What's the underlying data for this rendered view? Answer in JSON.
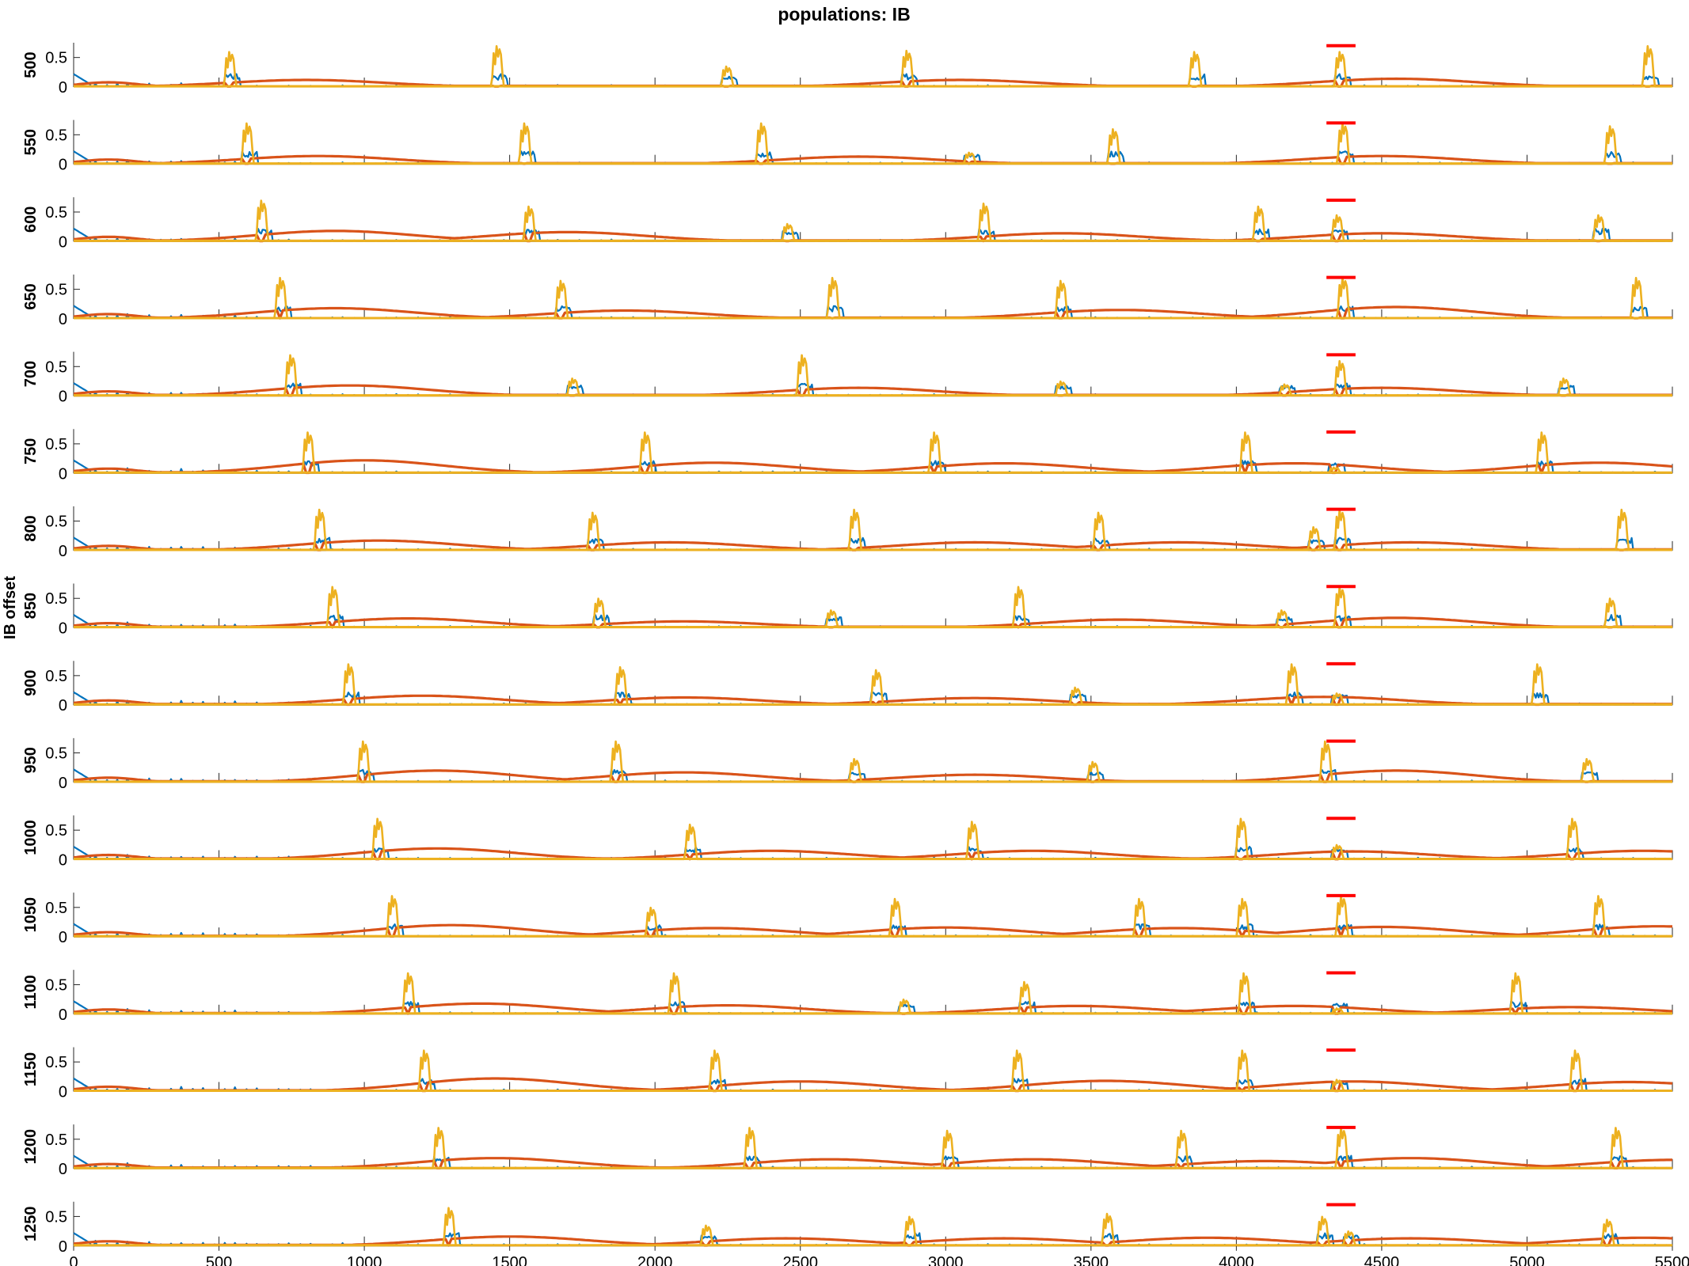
{
  "chart_data": {
    "type": "line",
    "title": "populations: IB",
    "ylabel": "IB offset",
    "xlabel": "",
    "xlim": [
      0,
      5500
    ],
    "xticks": [
      0,
      500,
      1000,
      1500,
      2000,
      2500,
      3000,
      3500,
      4000,
      4500,
      5000,
      5500
    ],
    "ylim": [
      0,
      0.75
    ],
    "yticks": [
      0,
      0.5
    ],
    "ytick_labels": [
      "0",
      "0.5"
    ],
    "grid": false,
    "series_colors": {
      "blue": "#0072bd",
      "orange": "#d95319",
      "yellow": "#edb120",
      "marker": "#ff0000"
    },
    "stimulus_bar": {
      "x_start": 4310,
      "x_end": 4410,
      "y": 0.7
    },
    "rows": [
      {
        "label": "500",
        "bursts": [
          [
            530,
            0.6
          ],
          [
            1450,
            0.7
          ],
          [
            2240,
            0.35
          ],
          [
            2860,
            0.62
          ],
          [
            3850,
            0.6
          ],
          [
            4350,
            0.6
          ],
          [
            5410,
            0.7
          ]
        ],
        "slow_peaks": [
          [
            800,
            0.12
          ],
          [
            3050,
            0.12
          ],
          [
            4550,
            0.14
          ]
        ]
      },
      {
        "label": "550",
        "bursts": [
          [
            590,
            0.7
          ],
          [
            1545,
            0.7
          ],
          [
            2360,
            0.7
          ],
          [
            3075,
            0.2
          ],
          [
            3570,
            0.6
          ],
          [
            4360,
            0.7
          ],
          [
            5280,
            0.65
          ]
        ],
        "slow_peaks": [
          [
            840,
            0.14
          ],
          [
            2700,
            0.13
          ],
          [
            4500,
            0.14
          ]
        ]
      },
      {
        "label": "600",
        "bursts": [
          [
            640,
            0.7
          ],
          [
            1560,
            0.6
          ],
          [
            2450,
            0.3
          ],
          [
            3125,
            0.65
          ],
          [
            4070,
            0.6
          ],
          [
            4340,
            0.45
          ],
          [
            5240,
            0.45
          ]
        ],
        "slow_peaks": [
          [
            900,
            0.18
          ],
          [
            1700,
            0.16
          ],
          [
            3400,
            0.14
          ],
          [
            4500,
            0.14
          ]
        ]
      },
      {
        "label": "650",
        "bursts": [
          [
            705,
            0.7
          ],
          [
            1670,
            0.65
          ],
          [
            2605,
            0.7
          ],
          [
            3390,
            0.65
          ],
          [
            4360,
            0.7
          ],
          [
            5370,
            0.7
          ]
        ],
        "slow_peaks": [
          [
            900,
            0.18
          ],
          [
            1900,
            0.14
          ],
          [
            3600,
            0.15
          ],
          [
            4550,
            0.2
          ]
        ]
      },
      {
        "label": "700",
        "bursts": [
          [
            740,
            0.7
          ],
          [
            1710,
            0.3
          ],
          [
            2500,
            0.7
          ],
          [
            3390,
            0.25
          ],
          [
            4160,
            0.2
          ],
          [
            4350,
            0.6
          ],
          [
            5120,
            0.3
          ]
        ],
        "slow_peaks": [
          [
            950,
            0.18
          ],
          [
            2700,
            0.14
          ],
          [
            4500,
            0.14
          ]
        ]
      },
      {
        "label": "750",
        "bursts": [
          [
            800,
            0.7
          ],
          [
            1960,
            0.7
          ],
          [
            2955,
            0.7
          ],
          [
            4025,
            0.7
          ],
          [
            4330,
            0.1
          ],
          [
            5045,
            0.7
          ]
        ],
        "slow_peaks": [
          [
            1000,
            0.22
          ],
          [
            2200,
            0.18
          ],
          [
            3200,
            0.17
          ],
          [
            4200,
            0.17
          ],
          [
            5250,
            0.18
          ]
        ]
      },
      {
        "label": "800",
        "bursts": [
          [
            840,
            0.7
          ],
          [
            1780,
            0.65
          ],
          [
            2680,
            0.7
          ],
          [
            3520,
            0.65
          ],
          [
            4260,
            0.4
          ],
          [
            4350,
            0.7
          ],
          [
            5320,
            0.7
          ]
        ],
        "slow_peaks": [
          [
            1050,
            0.17
          ],
          [
            2050,
            0.14
          ],
          [
            3100,
            0.14
          ],
          [
            3800,
            0.14
          ],
          [
            4600,
            0.14
          ]
        ]
      },
      {
        "label": "850",
        "bursts": [
          [
            885,
            0.7
          ],
          [
            1800,
            0.5
          ],
          [
            2600,
            0.3
          ],
          [
            3245,
            0.7
          ],
          [
            4150,
            0.3
          ],
          [
            4350,
            0.7
          ],
          [
            5280,
            0.5
          ]
        ],
        "slow_peaks": [
          [
            1150,
            0.16
          ],
          [
            2100,
            0.11
          ],
          [
            3600,
            0.14
          ],
          [
            4550,
            0.17
          ]
        ]
      },
      {
        "label": "900",
        "bursts": [
          [
            940,
            0.7
          ],
          [
            1875,
            0.65
          ],
          [
            2755,
            0.6
          ],
          [
            3440,
            0.3
          ],
          [
            4185,
            0.7
          ],
          [
            4340,
            0.2
          ],
          [
            5030,
            0.7
          ]
        ],
        "slow_peaks": [
          [
            1200,
            0.16
          ],
          [
            2100,
            0.13
          ],
          [
            3100,
            0.12
          ],
          [
            4300,
            0.14
          ]
        ]
      },
      {
        "label": "950",
        "bursts": [
          [
            990,
            0.7
          ],
          [
            1860,
            0.7
          ],
          [
            2680,
            0.4
          ],
          [
            3500,
            0.35
          ],
          [
            4300,
            0.7
          ],
          [
            5200,
            0.4
          ]
        ],
        "slow_peaks": [
          [
            1250,
            0.2
          ],
          [
            2100,
            0.17
          ],
          [
            3100,
            0.13
          ],
          [
            4550,
            0.2
          ]
        ]
      },
      {
        "label": "1000",
        "bursts": [
          [
            1040,
            0.7
          ],
          [
            2115,
            0.6
          ],
          [
            3085,
            0.65
          ],
          [
            4010,
            0.7
          ],
          [
            4340,
            0.25
          ],
          [
            5150,
            0.7
          ]
        ],
        "slow_peaks": [
          [
            1250,
            0.19
          ],
          [
            2400,
            0.15
          ],
          [
            3300,
            0.15
          ],
          [
            4400,
            0.14
          ],
          [
            5400,
            0.15
          ]
        ]
      },
      {
        "label": "1050",
        "bursts": [
          [
            1090,
            0.7
          ],
          [
            1980,
            0.5
          ],
          [
            2820,
            0.65
          ],
          [
            3660,
            0.65
          ],
          [
            4015,
            0.65
          ],
          [
            4355,
            0.7
          ],
          [
            5240,
            0.7
          ]
        ],
        "slow_peaks": [
          [
            1300,
            0.2
          ],
          [
            2200,
            0.15
          ],
          [
            3000,
            0.16
          ],
          [
            3800,
            0.15
          ],
          [
            4500,
            0.17
          ],
          [
            5450,
            0.18
          ]
        ]
      },
      {
        "label": "1100",
        "bursts": [
          [
            1145,
            0.7
          ],
          [
            2060,
            0.7
          ],
          [
            2850,
            0.25
          ],
          [
            3265,
            0.55
          ],
          [
            4020,
            0.7
          ],
          [
            4340,
            0.1
          ],
          [
            4955,
            0.7
          ]
        ],
        "slow_peaks": [
          [
            1400,
            0.18
          ],
          [
            2250,
            0.15
          ],
          [
            3450,
            0.14
          ],
          [
            4200,
            0.14
          ],
          [
            5150,
            0.12
          ]
        ]
      },
      {
        "label": "1150",
        "bursts": [
          [
            1200,
            0.7
          ],
          [
            2200,
            0.7
          ],
          [
            3240,
            0.7
          ],
          [
            4015,
            0.7
          ],
          [
            4340,
            0.2
          ],
          [
            5160,
            0.7
          ]
        ],
        "slow_peaks": [
          [
            1450,
            0.22
          ],
          [
            2500,
            0.17
          ],
          [
            3550,
            0.18
          ],
          [
            4400,
            0.17
          ],
          [
            5350,
            0.16
          ]
        ]
      },
      {
        "label": "1200",
        "bursts": [
          [
            1250,
            0.7
          ],
          [
            2320,
            0.7
          ],
          [
            3000,
            0.65
          ],
          [
            3805,
            0.65
          ],
          [
            4355,
            0.7
          ],
          [
            5300,
            0.7
          ]
        ],
        "slow_peaks": [
          [
            1450,
            0.18
          ],
          [
            2600,
            0.16
          ],
          [
            3300,
            0.16
          ],
          [
            4100,
            0.13
          ],
          [
            4600,
            0.18
          ],
          [
            5500,
            0.15
          ]
        ]
      },
      {
        "label": "1250",
        "bursts": [
          [
            1285,
            0.65
          ],
          [
            2170,
            0.35
          ],
          [
            2870,
            0.5
          ],
          [
            3550,
            0.55
          ],
          [
            4290,
            0.5
          ],
          [
            4380,
            0.25
          ],
          [
            5270,
            0.45
          ]
        ],
        "slow_peaks": [
          [
            1500,
            0.16
          ],
          [
            2450,
            0.13
          ],
          [
            3200,
            0.13
          ],
          [
            3900,
            0.14
          ],
          [
            4600,
            0.13
          ],
          [
            5400,
            0.14
          ]
        ]
      }
    ]
  }
}
